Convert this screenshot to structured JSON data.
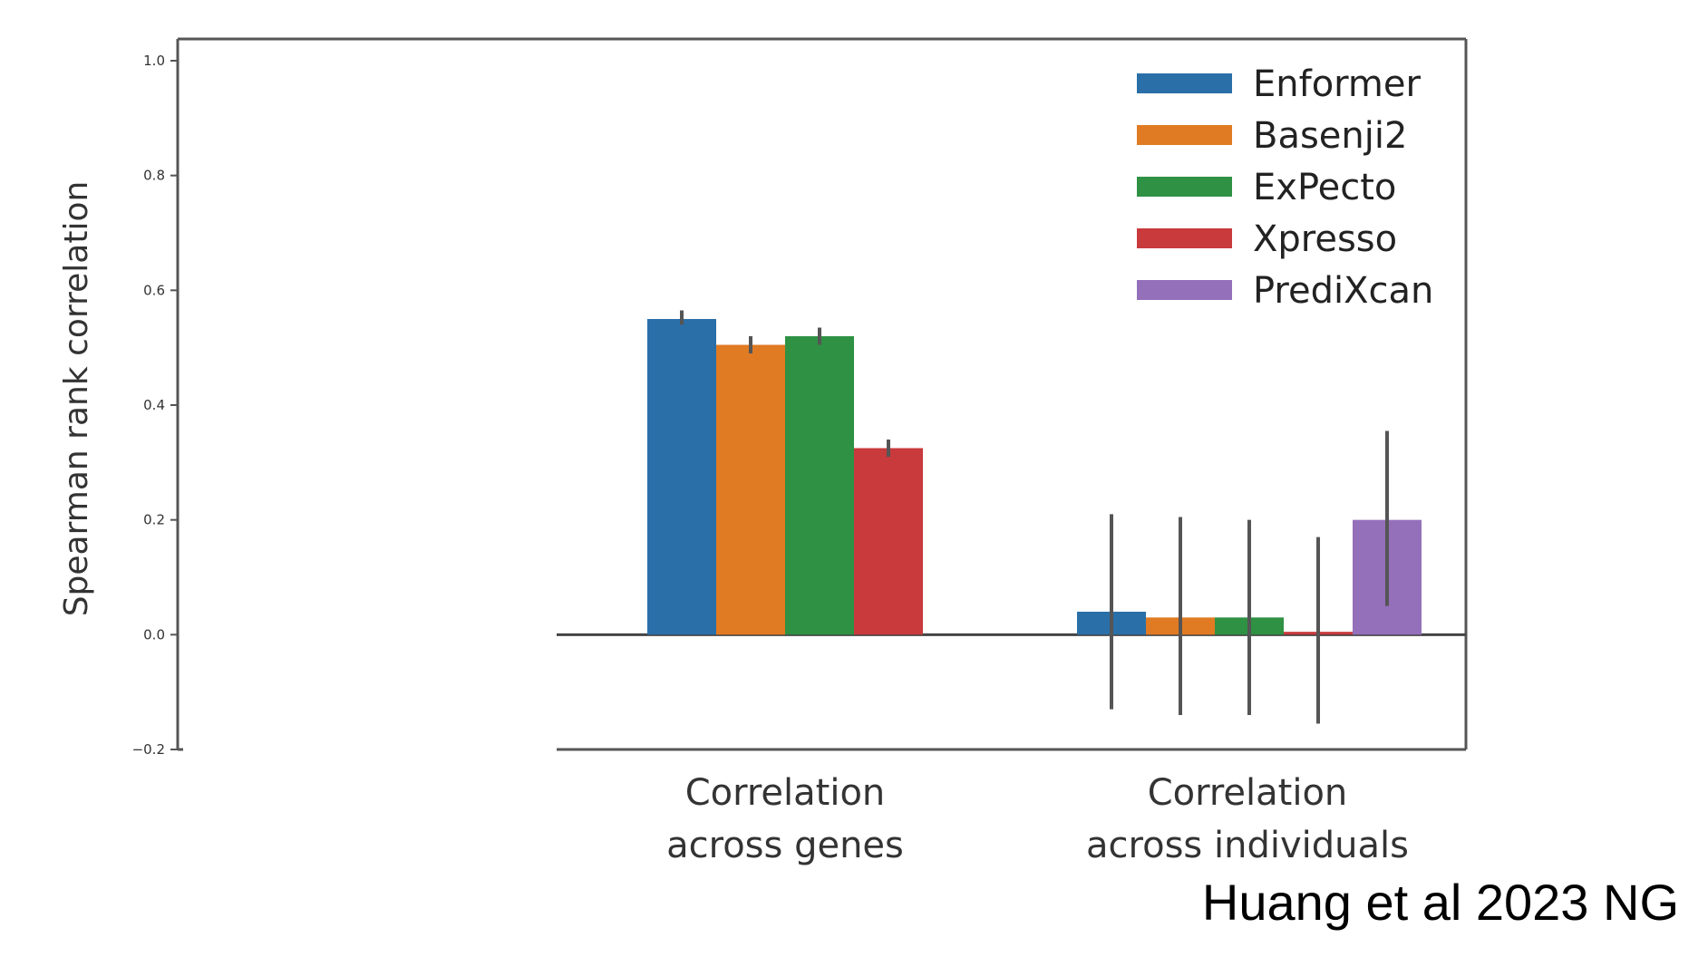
{
  "chart_data": {
    "type": "bar",
    "title": "",
    "xlabel": "",
    "ylabel": "Spearman rank correlation",
    "ylim": [
      -0.2,
      1.0
    ],
    "yticks": [
      "1.0",
      "0.8",
      "0.6",
      "0.4",
      "0.2",
      "0.0",
      "−0.2"
    ],
    "categories": [
      [
        "Correlation",
        "across genes"
      ],
      [
        "Correlation",
        "across individuals"
      ]
    ],
    "series": [
      {
        "name": "Enformer",
        "color": "#2a6fa7",
        "values": [
          0.55,
          0.04
        ],
        "error_low": [
          0.54,
          -0.13
        ],
        "error_high": [
          0.565,
          0.21
        ]
      },
      {
        "name": "Basenji2",
        "color": "#e07b24",
        "values": [
          0.505,
          0.03
        ],
        "error_low": [
          0.49,
          -0.14
        ],
        "error_high": [
          0.52,
          0.205
        ]
      },
      {
        "name": "ExPecto",
        "color": "#2f9143",
        "values": [
          0.52,
          0.03
        ],
        "error_low": [
          0.505,
          -0.14
        ],
        "error_high": [
          0.535,
          0.2
        ]
      },
      {
        "name": "Xpresso",
        "color": "#c83a3c",
        "values": [
          0.325,
          0.005
        ],
        "error_low": [
          0.31,
          -0.155
        ],
        "error_high": [
          0.34,
          0.17
        ]
      },
      {
        "name": "PrediXcan",
        "color": "#9470bb",
        "values": [
          null,
          0.2
        ],
        "error_low": [
          null,
          0.05
        ],
        "error_high": [
          null,
          0.355
        ]
      }
    ],
    "legend_position": "top-right",
    "grid": false
  },
  "citation": "Huang et al 2023 NG"
}
